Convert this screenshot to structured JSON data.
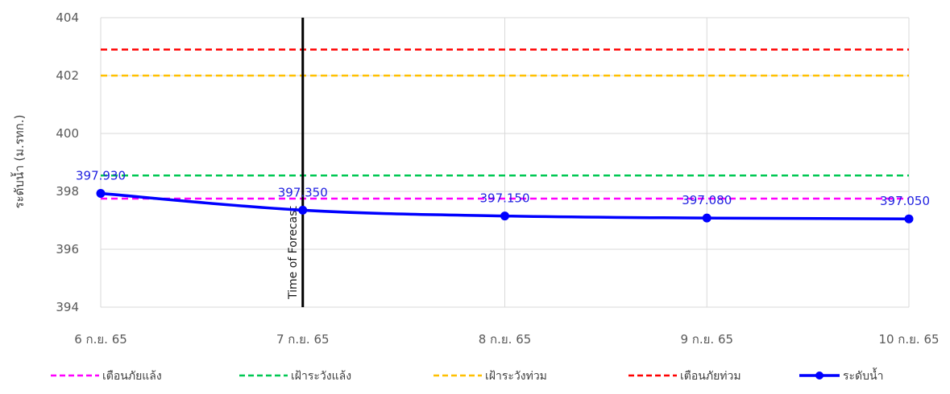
{
  "chart_data": {
    "type": "line",
    "xlabel": "",
    "ylabel": "ระดับน้ำ (ม.รทก.)",
    "categories": [
      "6 ก.ย. 65",
      "7 ก.ย. 65",
      "8 ก.ย. 65",
      "9 ก.ย. 65",
      "10 ก.ย. 65"
    ],
    "ylim": [
      394,
      404
    ],
    "yticks": [
      "394",
      "396",
      "398",
      "400",
      "402",
      "404"
    ],
    "grid": true,
    "legend_position": "bottom",
    "thresholds": [
      {
        "name": "เตือนภัยแล้ง",
        "value": 397.75,
        "color": "#ff00ff",
        "dash": true
      },
      {
        "name": "เฝ้าระวังแล้ง",
        "value": 398.55,
        "color": "#00c853",
        "dash": true
      },
      {
        "name": "เฝ้าระวังท่วม",
        "value": 402.0,
        "color": "#ffc000",
        "dash": true
      },
      {
        "name": "เตือนภัยท่วม",
        "value": 402.9,
        "color": "#ff0000",
        "dash": true
      }
    ],
    "series": [
      {
        "name": "ระดับน้ำ",
        "color": "#0000ff",
        "values": [
          397.93,
          397.35,
          397.15,
          397.08,
          397.05
        ],
        "labels": [
          "397.930",
          "397.350",
          "397.150",
          "397.080",
          "397.050"
        ]
      }
    ],
    "marker": {
      "label": "Time of Forecast",
      "category_index": 1,
      "color": "#000000"
    }
  }
}
